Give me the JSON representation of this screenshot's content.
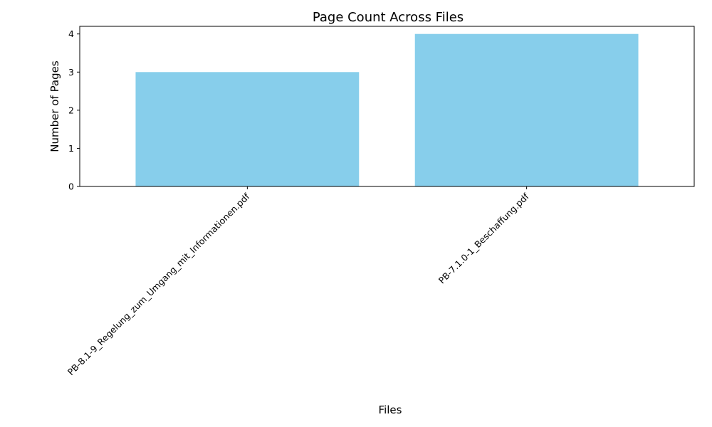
{
  "chart_data": {
    "type": "bar",
    "title": "Page Count Across Files",
    "xlabel": "Files",
    "ylabel": "Number of Pages",
    "categories": [
      "PB-8.1-9_Regelung_zum_Umgang_mit_Informationen.pdf",
      "PB-7.1.0-1_Beschaffung.pdf"
    ],
    "values": [
      3,
      4
    ],
    "ylim": [
      0,
      4.2
    ],
    "yticks": [
      "0",
      "1",
      "2",
      "3",
      "4"
    ],
    "bar_color": "#87CEEB",
    "grid": false,
    "legend": "none"
  }
}
